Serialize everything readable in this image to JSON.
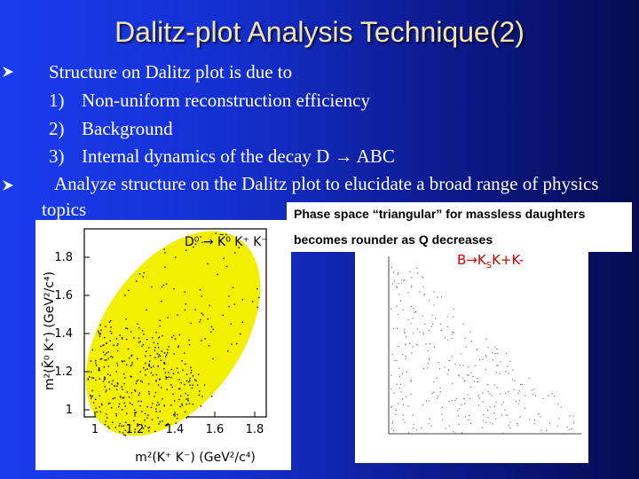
{
  "title": "Dalitz-plot Analysis Technique(2)",
  "bullets": [
    {
      "text": "Structure on Dalitz plot is due to",
      "items": [
        {
          "marker": "1)",
          "text": "Non-uniform reconstruction efficiency"
        },
        {
          "marker": "2)",
          "text": "Background"
        },
        {
          "marker": "3)",
          "text": "Internal dynamics of the decay  D → ABC"
        }
      ]
    },
    {
      "text": "Analyze structure on the Dalitz plot to elucidate a broad range of physics topics",
      "items": []
    }
  ],
  "caption": [
    "Phase space “triangular” for massless daughters",
    "becomes rounder as Q decreases"
  ],
  "left_plot": {
    "decay_label": "D⁰ → K̄⁰ K⁺ K⁻",
    "x_label": "m²(K⁺ K⁻) (GeV²/c⁴)",
    "y_label": "m²(K̄⁰ K⁺) (GeV²/c⁴)",
    "x_ticks": [
      "1",
      "1.2",
      "1.4",
      "1.6",
      "1.8"
    ],
    "y_ticks": [
      "1",
      "1.2",
      "1.4",
      "1.6",
      "1.8"
    ]
  },
  "right_plot": {
    "label": [
      "B→K",
      "S",
      "K+K-"
    ]
  }
}
